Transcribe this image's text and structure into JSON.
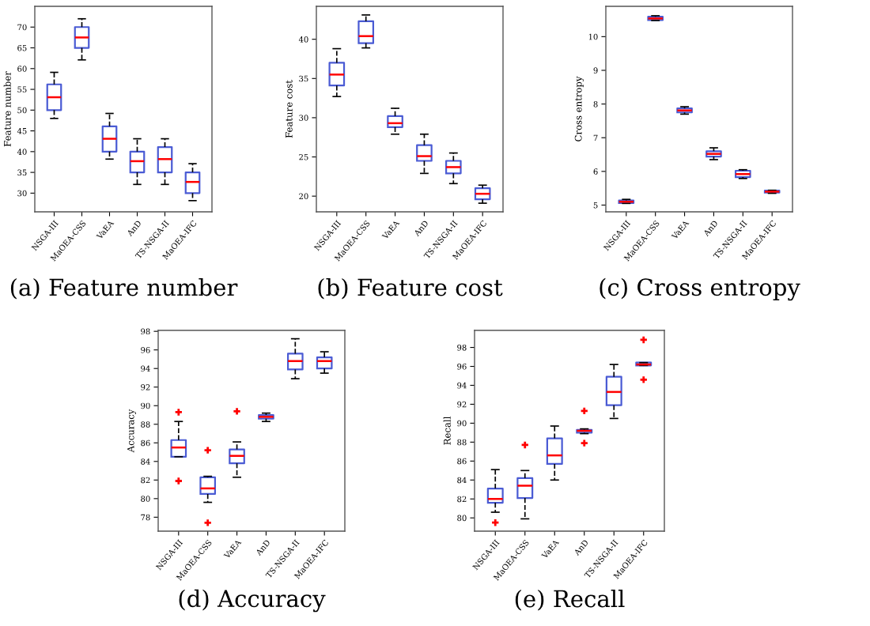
{
  "chart_data": [
    {
      "type": "box",
      "title": "(a) Feature number",
      "ylabel": "Feature number",
      "categories": [
        "NSGA-III",
        "MaOEA-CSS",
        "VaEA",
        "AnD",
        "TS-NSGA-II",
        "MaOEA-IFC"
      ],
      "ylim": [
        25.5,
        75
      ],
      "yticks": [
        30,
        35,
        40,
        45,
        50,
        55,
        60,
        65,
        70
      ],
      "marker": "cross",
      "series": [
        {
          "color": "#4a5bd4",
          "boxes": [
            {
              "low": 48,
              "q1": 50,
              "median": 53.1,
              "q3": 56.2,
              "high": 59.1
            },
            {
              "low": 62.1,
              "q1": 65,
              "median": 67.5,
              "q3": 70,
              "high": 72
            },
            {
              "low": 38.2,
              "q1": 40,
              "median": 43.1,
              "q3": 46.1,
              "high": 49.2
            },
            {
              "low": 32.1,
              "q1": 35,
              "median": 37.7,
              "q3": 40,
              "high": 43.1
            },
            {
              "low": 32.1,
              "q1": 35,
              "median": 38.2,
              "q3": 41.1,
              "high": 43.1
            },
            {
              "low": 28.2,
              "q1": 30,
              "median": 32.7,
              "q3": 35,
              "high": 37.1
            }
          ]
        }
      ]
    },
    {
      "type": "box",
      "title": "(b) Feature cost",
      "ylabel": "Feature cost",
      "categories": [
        "NSGA-III",
        "MaOEA-CSS",
        "VaEA",
        "AnD",
        "TS-NSGA-II",
        "MaOEA-IFC"
      ],
      "ylim": [
        18,
        44.2
      ],
      "yticks": [
        20,
        25,
        30,
        35,
        40
      ],
      "marker": "cross",
      "series": [
        {
          "color": "#4a5bd4",
          "boxes": [
            {
              "low": 32.7,
              "q1": 34.1,
              "median": 35.5,
              "q3": 37,
              "high": 38.8
            },
            {
              "low": 38.9,
              "q1": 39.5,
              "median": 40.4,
              "q3": 42.3,
              "high": 43.1
            },
            {
              "low": 27.9,
              "q1": 28.8,
              "median": 29.3,
              "q3": 30.2,
              "high": 31.2
            },
            {
              "low": 22.9,
              "q1": 24.5,
              "median": 25.1,
              "q3": 26.5,
              "high": 27.9
            },
            {
              "low": 21.6,
              "q1": 22.9,
              "median": 23.7,
              "q3": 24.5,
              "high": 25.5
            },
            {
              "low": 19.1,
              "q1": 19.6,
              "median": 20.3,
              "q3": 21,
              "high": 21.4
            }
          ]
        }
      ]
    },
    {
      "type": "box",
      "title": "(c) Cross entropy",
      "ylabel": "Cross entropy",
      "categories": [
        "NSGA-III",
        "MaOEA-CSS",
        "VaEA",
        "AnD",
        "TS-NSGA-II",
        "MaOEA-IFC"
      ],
      "ylim": [
        4.8,
        10.9
      ],
      "yticks": [
        5,
        6,
        7,
        8,
        9,
        10
      ],
      "marker": "cross",
      "series": [
        {
          "color": "#4a5bd4",
          "boxes": [
            {
              "low": 5.05,
              "q1": 5.06,
              "median": 5.1,
              "q3": 5.14,
              "high": 5.17
            },
            {
              "low": 10.48,
              "q1": 10.49,
              "median": 10.54,
              "q3": 10.59,
              "high": 10.62
            },
            {
              "low": 7.7,
              "q1": 7.75,
              "median": 7.81,
              "q3": 7.87,
              "high": 7.92
            },
            {
              "low": 6.35,
              "q1": 6.44,
              "median": 6.52,
              "q3": 6.6,
              "high": 6.7
            },
            {
              "low": 5.79,
              "q1": 5.83,
              "median": 5.92,
              "q3": 6.02,
              "high": 6.05
            },
            {
              "low": 5.35,
              "q1": 5.37,
              "median": 5.4,
              "q3": 5.43,
              "high": 5.44
            }
          ]
        }
      ]
    },
    {
      "type": "box",
      "title": "(d) Accuracy",
      "ylabel": "Accuracy",
      "categories": [
        "NSGA-III",
        "MaOEA-CSS",
        "VaEA",
        "AnD",
        "TS-NSGA-II",
        "MaOEA-IFC"
      ],
      "ylim": [
        76.5,
        98.1
      ],
      "yticks": [
        78,
        80,
        82,
        84,
        86,
        88,
        90,
        92,
        94,
        96,
        98
      ],
      "marker": "cross",
      "series": [
        {
          "color": "#4a5bd4",
          "boxes": [
            {
              "low": 84.5,
              "q1": 84.5,
              "median": 85.5,
              "q3": 86.3,
              "high": 88.3,
              "outliers": [
                89.3,
                81.9
              ]
            },
            {
              "low": 79.6,
              "q1": 80.5,
              "median": 81.1,
              "q3": 82.3,
              "high": 82.4,
              "outliers": [
                85.2,
                77.4
              ]
            },
            {
              "low": 82.3,
              "q1": 83.8,
              "median": 84.6,
              "q3": 85.3,
              "high": 86.1,
              "outliers": [
                89.4
              ]
            },
            {
              "low": 88.3,
              "q1": 88.6,
              "median": 88.8,
              "q3": 89,
              "high": 89.2
            },
            {
              "low": 92.9,
              "q1": 93.9,
              "median": 94.8,
              "q3": 95.6,
              "high": 97.2
            },
            {
              "low": 93.5,
              "q1": 94,
              "median": 94.8,
              "q3": 95.2,
              "high": 95.8
            }
          ]
        }
      ]
    },
    {
      "type": "box",
      "title": "(e) Recall",
      "ylabel": "Recall",
      "categories": [
        "NSGA-III",
        "MaOEA-CSS",
        "VaEA",
        "AnD",
        "TS-NSGA-II",
        "MaOEA-IFC"
      ],
      "ylim": [
        78.6,
        99.8
      ],
      "yticks": [
        80,
        82,
        84,
        86,
        88,
        90,
        92,
        94,
        96,
        98
      ],
      "marker": "cross",
      "series": [
        {
          "color": "#4a5bd4",
          "boxes": [
            {
              "low": 80.6,
              "q1": 81.6,
              "median": 82,
              "q3": 83.1,
              "high": 85.1,
              "outliers": [
                79.5
              ]
            },
            {
              "low": 79.9,
              "q1": 82.1,
              "median": 83.4,
              "q3": 84.2,
              "high": 85,
              "outliers": [
                87.7
              ]
            },
            {
              "low": 84,
              "q1": 85.7,
              "median": 86.6,
              "q3": 88.4,
              "high": 89.7
            },
            {
              "low": 88.9,
              "q1": 89,
              "median": 89.2,
              "q3": 89.3,
              "high": 89.4,
              "outliers": [
                91.3,
                87.9
              ]
            },
            {
              "low": 90.5,
              "q1": 91.9,
              "median": 93.3,
              "q3": 94.9,
              "high": 96.2
            },
            {
              "low": 96.1,
              "q1": 96.1,
              "median": 96.2,
              "q3": 96.4,
              "high": 96.4,
              "outliers": [
                98.8,
                94.6
              ]
            }
          ]
        }
      ]
    }
  ]
}
